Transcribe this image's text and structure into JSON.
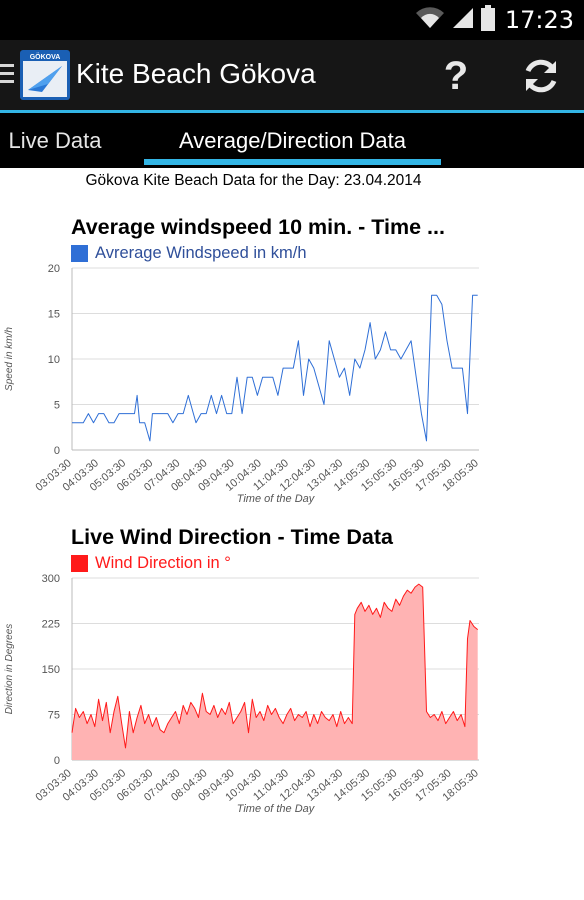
{
  "status_bar": {
    "time": "17:23",
    "icons": [
      "wifi-icon",
      "signal-icon",
      "battery-icon"
    ]
  },
  "action_bar": {
    "app_icon_text": "GÖKOVA",
    "title": "Kite Beach Gökova",
    "help_glyph": "?",
    "actions": [
      "help-icon",
      "refresh-icon"
    ]
  },
  "tabs": [
    {
      "label": "Live Data",
      "selected": false
    },
    {
      "label": "Average/Direction Data",
      "selected": true
    }
  ],
  "header": {
    "text": "Gökova Kite Beach Data for the Day: 23.04.2014"
  },
  "colors": {
    "accent": "#33b5e5",
    "speed": "#2f6fd6",
    "direction": "#ff1a1a",
    "direction_fill": "#ffb3b3"
  },
  "chart_data": [
    {
      "type": "line",
      "title": "Average windspeed 10 min. - Time ...",
      "legend": "Avrerage Windspeed in km/h",
      "xlabel": "Time of the Day",
      "ylabel": "Speed in km/h",
      "ylim": [
        0,
        20
      ],
      "yticks": [
        0,
        5,
        10,
        15,
        20
      ],
      "xticks": [
        "03:03:30",
        "04:03:30",
        "05:03:30",
        "06:03:30",
        "07:04:30",
        "08:04:30",
        "09:04:30",
        "10:04:30",
        "11:04:30",
        "12:04:30",
        "13:04:30",
        "14:05:30",
        "15:05:30",
        "16:05:30",
        "17:05:30",
        "18:05:30"
      ],
      "grid": true,
      "series": [
        {
          "name": "Avrerage Windspeed in km/h",
          "x": [
            3.06,
            3.3,
            3.5,
            3.7,
            3.9,
            4.1,
            4.3,
            4.5,
            4.7,
            4.9,
            5.1,
            5.3,
            5.5,
            5.6,
            5.7,
            5.9,
            6.1,
            6.2,
            6.4,
            6.6,
            6.8,
            7.0,
            7.2,
            7.4,
            7.6,
            7.8,
            7.9,
            8.1,
            8.3,
            8.5,
            8.7,
            8.9,
            9.1,
            9.3,
            9.5,
            9.7,
            9.9,
            10.1,
            10.3,
            10.5,
            10.7,
            10.9,
            11.1,
            11.3,
            11.5,
            11.7,
            11.9,
            12.1,
            12.3,
            12.5,
            12.7,
            12.9,
            13.1,
            13.3,
            13.5,
            13.7,
            13.9,
            14.1,
            14.3,
            14.5,
            14.7,
            14.9,
            15.1,
            15.3,
            15.5,
            15.7,
            15.9,
            16.1,
            16.3,
            16.5,
            16.7,
            16.9,
            17.1,
            17.3,
            17.5,
            17.7,
            17.9,
            18.1,
            18.3,
            18.5,
            18.7,
            18.9
          ],
          "y": [
            3,
            3,
            3,
            4,
            3,
            4,
            4,
            3,
            3,
            4,
            4,
            4,
            4,
            6,
            3,
            3,
            1,
            4,
            4,
            4,
            4,
            3,
            4,
            4,
            6,
            4,
            3,
            4,
            4,
            6,
            4,
            6,
            4,
            4,
            8,
            4,
            8,
            8,
            6,
            8,
            8,
            8,
            6,
            9,
            9,
            9,
            12,
            6,
            10,
            9,
            7,
            5,
            12,
            10,
            8,
            9,
            6,
            10,
            9,
            11,
            14,
            10,
            11,
            13,
            11,
            11,
            10,
            11,
            12,
            8,
            4,
            1,
            17,
            17,
            16,
            12,
            9,
            9,
            9,
            4,
            17,
            17
          ]
        }
      ]
    },
    {
      "type": "area",
      "title": "Live Wind Direction - Time Data",
      "legend": "Wind Direction in °",
      "xlabel": "Time of the Day",
      "ylabel": "Direction in Degrees",
      "ylim": [
        0,
        300
      ],
      "yticks": [
        0,
        75,
        150,
        225,
        300
      ],
      "xticks": [
        "03:03:30",
        "04:03:30",
        "05:03:30",
        "06:03:30",
        "07:04:30",
        "08:04:30",
        "09:04:30",
        "10:04:30",
        "11:04:30",
        "12:04:30",
        "13:04:30",
        "14:05:30",
        "15:05:30",
        "16:05:30",
        "17:05:30",
        "18:05:30"
      ],
      "grid": true,
      "series": [
        {
          "name": "Wind Direction in °",
          "x": [
            3.06,
            3.2,
            3.35,
            3.5,
            3.65,
            3.8,
            3.95,
            4.1,
            4.25,
            4.4,
            4.55,
            4.7,
            4.85,
            5.0,
            5.15,
            5.3,
            5.45,
            5.6,
            5.75,
            5.9,
            6.05,
            6.2,
            6.35,
            6.5,
            6.65,
            6.8,
            6.95,
            7.1,
            7.25,
            7.4,
            7.55,
            7.7,
            7.85,
            8.0,
            8.15,
            8.3,
            8.45,
            8.6,
            8.75,
            8.9,
            9.05,
            9.2,
            9.35,
            9.5,
            9.65,
            9.8,
            9.95,
            10.1,
            10.25,
            10.4,
            10.55,
            10.7,
            10.85,
            11.0,
            11.15,
            11.3,
            11.45,
            11.6,
            11.75,
            11.9,
            12.05,
            12.2,
            12.35,
            12.5,
            12.65,
            12.8,
            12.95,
            13.1,
            13.25,
            13.4,
            13.55,
            13.7,
            13.85,
            14.0,
            14.1,
            14.2,
            14.35,
            14.5,
            14.65,
            14.8,
            14.95,
            15.1,
            15.25,
            15.4,
            15.55,
            15.7,
            15.85,
            16.0,
            16.15,
            16.3,
            16.45,
            16.6,
            16.75,
            16.9,
            17.05,
            17.2,
            17.35,
            17.5,
            17.65,
            17.8,
            17.95,
            18.1,
            18.25,
            18.4,
            18.5,
            18.6,
            18.75,
            18.9
          ],
          "y": [
            45,
            85,
            70,
            80,
            60,
            75,
            55,
            100,
            65,
            95,
            45,
            80,
            105,
            60,
            20,
            80,
            45,
            70,
            90,
            60,
            75,
            55,
            70,
            50,
            45,
            60,
            70,
            80,
            60,
            90,
            75,
            95,
            85,
            70,
            110,
            80,
            75,
            90,
            70,
            85,
            75,
            95,
            60,
            70,
            80,
            95,
            45,
            100,
            70,
            80,
            65,
            90,
            75,
            85,
            70,
            60,
            75,
            85,
            65,
            75,
            70,
            80,
            55,
            75,
            60,
            80,
            70,
            65,
            75,
            55,
            80,
            60,
            70,
            60,
            240,
            250,
            260,
            245,
            255,
            240,
            250,
            235,
            260,
            250,
            245,
            265,
            255,
            270,
            280,
            275,
            285,
            290,
            285,
            80,
            70,
            75,
            65,
            80,
            60,
            70,
            80,
            65,
            75,
            55,
            200,
            230,
            220,
            215
          ]
        }
      ]
    }
  ]
}
